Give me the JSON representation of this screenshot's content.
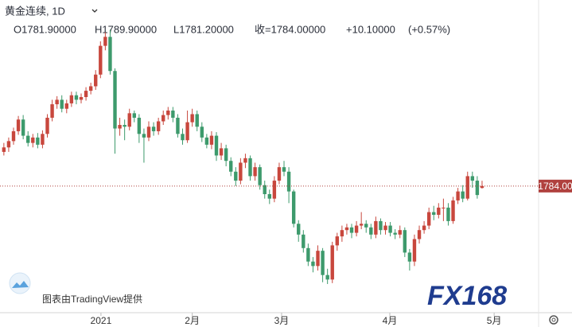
{
  "header": {
    "title": "黄金连续, 1D",
    "open": "O1781.90000",
    "high": "H1789.90000",
    "low": "L1781.20000",
    "close": "收=1784.00000",
    "change": "+10.10000",
    "change_pct": "(+0.57%)"
  },
  "chart_data": {
    "type": "candlestick",
    "categories": [
      null,
      null,
      null,
      null,
      null,
      null,
      null,
      null,
      null,
      null,
      null,
      null,
      null,
      null,
      null,
      null,
      null,
      null,
      null,
      null,
      null,
      null,
      null,
      null,
      null,
      null,
      null,
      null,
      null,
      null,
      null,
      null,
      null,
      null,
      null,
      null,
      null,
      null,
      null,
      null,
      null,
      null,
      null,
      null,
      null,
      null,
      null,
      null,
      null,
      null,
      null,
      null,
      null,
      null,
      null,
      null,
      null,
      null,
      null,
      null,
      null,
      null,
      null,
      null,
      null,
      null,
      null,
      null,
      null,
      null,
      null,
      null,
      null,
      null,
      null,
      null,
      null,
      null,
      null,
      null,
      null,
      null,
      null,
      null,
      null,
      null,
      null,
      null,
      null,
      null,
      null,
      null,
      null,
      null,
      null,
      null,
      null,
      null,
      null,
      null
    ],
    "open": [
      1822,
      1827,
      1834,
      1845,
      1858,
      1840,
      1832,
      1838,
      1830,
      1842,
      1860,
      1875,
      1880,
      1870,
      1876,
      1885,
      1880,
      1883,
      1890,
      1895,
      1908,
      1940,
      1950,
      1912,
      1848,
      1852,
      1850,
      1865,
      1860,
      1842,
      1838,
      1850,
      1845,
      1856,
      1863,
      1868,
      1860,
      1842,
      1835,
      1855,
      1864,
      1850,
      1838,
      1830,
      1840,
      1818,
      1826,
      1812,
      1800,
      1790,
      1810,
      1815,
      1795,
      1805,
      1785,
      1775,
      1770,
      1790,
      1805,
      1800,
      1778,
      1742,
      1730,
      1715,
      1700,
      1695,
      1712,
      1685,
      1680,
      1718,
      1728,
      1735,
      1738,
      1732,
      1740,
      1742,
      1738,
      1730,
      1745,
      1735,
      1740,
      1732,
      1730,
      1735,
      1710,
      1700,
      1725,
      1735,
      1740,
      1755,
      1752,
      1760,
      1760,
      1745,
      1768,
      1778,
      1770,
      1795,
      1790,
      1781.9
    ],
    "high": [
      1832,
      1838,
      1849,
      1862,
      1863,
      1845,
      1842,
      1843,
      1846,
      1864,
      1880,
      1884,
      1885,
      1880,
      1889,
      1889,
      1887,
      1894,
      1899,
      1913,
      1945,
      1955,
      1958,
      1915,
      1860,
      1858,
      1870,
      1868,
      1864,
      1848,
      1856,
      1855,
      1860,
      1868,
      1872,
      1872,
      1864,
      1848,
      1868,
      1870,
      1868,
      1855,
      1842,
      1845,
      1844,
      1832,
      1830,
      1816,
      1805,
      1815,
      1820,
      1818,
      1810,
      1808,
      1790,
      1780,
      1795,
      1810,
      1812,
      1805,
      1780,
      1746,
      1735,
      1720,
      1705,
      1718,
      1715,
      1692,
      1722,
      1732,
      1740,
      1742,
      1742,
      1745,
      1755,
      1746,
      1742,
      1750,
      1748,
      1744,
      1744,
      1736,
      1740,
      1738,
      1714,
      1730,
      1740,
      1745,
      1760,
      1762,
      1765,
      1770,
      1765,
      1772,
      1782,
      1785,
      1800,
      1800,
      1795,
      1789.9
    ],
    "low": [
      1818,
      1822,
      1830,
      1841,
      1836,
      1828,
      1827,
      1826,
      1826,
      1838,
      1856,
      1870,
      1866,
      1865,
      1872,
      1875,
      1876,
      1879,
      1886,
      1891,
      1904,
      1935,
      1908,
      1820,
      1840,
      1835,
      1846,
      1855,
      1832,
      1810,
      1834,
      1840,
      1841,
      1852,
      1858,
      1855,
      1838,
      1830,
      1832,
      1850,
      1845,
      1833,
      1826,
      1825,
      1812,
      1813,
      1806,
      1795,
      1784,
      1786,
      1804,
      1790,
      1790,
      1780,
      1770,
      1764,
      1766,
      1786,
      1795,
      1765,
      1738,
      1722,
      1710,
      1695,
      1688,
      1690,
      1677,
      1675,
      1676,
      1712,
      1722,
      1730,
      1726,
      1728,
      1736,
      1732,
      1725,
      1726,
      1730,
      1730,
      1728,
      1725,
      1726,
      1705,
      1690,
      1695,
      1720,
      1731,
      1736,
      1746,
      1748,
      1745,
      1740,
      1742,
      1764,
      1766,
      1768,
      1782,
      1770,
      1781.2
    ],
    "close": [
      1827,
      1834,
      1845,
      1858,
      1840,
      1832,
      1838,
      1830,
      1842,
      1860,
      1875,
      1880,
      1870,
      1876,
      1885,
      1880,
      1883,
      1890,
      1895,
      1908,
      1940,
      1950,
      1912,
      1848,
      1852,
      1850,
      1865,
      1860,
      1842,
      1838,
      1850,
      1845,
      1856,
      1863,
      1868,
      1860,
      1842,
      1835,
      1855,
      1864,
      1850,
      1838,
      1830,
      1840,
      1818,
      1826,
      1812,
      1800,
      1790,
      1810,
      1815,
      1795,
      1805,
      1785,
      1775,
      1770,
      1790,
      1805,
      1800,
      1778,
      1742,
      1730,
      1715,
      1700,
      1695,
      1712,
      1685,
      1680,
      1718,
      1728,
      1735,
      1738,
      1732,
      1740,
      1742,
      1738,
      1730,
      1745,
      1735,
      1740,
      1732,
      1730,
      1735,
      1710,
      1700,
      1725,
      1735,
      1740,
      1755,
      1752,
      1760,
      1760,
      1745,
      1768,
      1778,
      1770,
      1795,
      1790,
      1774,
      1784
    ],
    "up_color": "#c8473d",
    "down_color": "#3d9a6c",
    "ylim": [
      1644,
      1991
    ],
    "xlim": [
      -0.8,
      110.7
    ],
    "xticks": [
      {
        "value": 20.1,
        "label": "2021"
      },
      {
        "value": 39,
        "label": "2月"
      },
      {
        "value": 57.5,
        "label": "3月"
      },
      {
        "value": 79.9,
        "label": "4月"
      },
      {
        "value": 101.5,
        "label": "5月"
      }
    ],
    "last_price": {
      "value": 1784,
      "label": "1784.00"
    }
  },
  "footer": {
    "credit": "图表由TradingView提供",
    "watermark": "FX168"
  }
}
